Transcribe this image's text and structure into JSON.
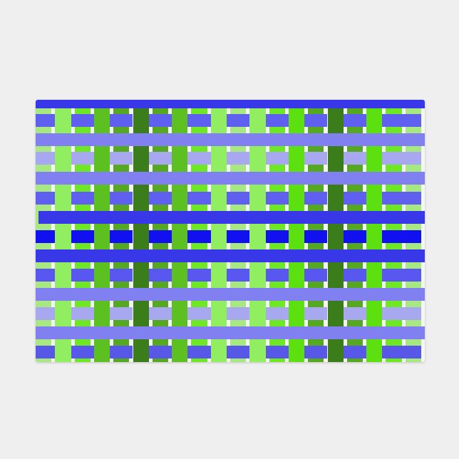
{
  "product": "plaid doormat",
  "background_color": "#efefef",
  "vertical_stripe_colors": [
    "#a8e880",
    "#90ee60",
    "#6ee822",
    "#5cc020",
    "#55a820",
    "#3a7d1a",
    "#55a820",
    "#5cc020",
    "#6ee822",
    "#90ee60",
    "#a8e880",
    "#90ee60",
    "#6ee822",
    "#5ce010",
    "#55a820",
    "#3a7d1a",
    "#55a820",
    "#5ce010",
    "#6ee822",
    "#a8e880"
  ],
  "horizontal_bands": [
    {
      "color": "#3838e8",
      "woven": false
    },
    {
      "color": "#6060f0",
      "woven": true
    },
    {
      "color": "#8080f0",
      "woven": false
    },
    {
      "color": "#a8a8f0",
      "woven": true
    },
    {
      "color": "#8080f0",
      "woven": false
    },
    {
      "color": "#6060f0",
      "woven": true
    },
    {
      "color": "#3838e8",
      "woven": false
    },
    {
      "color": "#1010f0",
      "woven": true
    },
    {
      "color": "#3838e8",
      "woven": false
    },
    {
      "color": "#5858f0",
      "woven": true
    },
    {
      "color": "#8080f0",
      "woven": false
    },
    {
      "color": "#a8a8f0",
      "woven": true
    },
    {
      "color": "#8080f0",
      "woven": false
    },
    {
      "color": "#5858e8",
      "woven": true
    }
  ]
}
